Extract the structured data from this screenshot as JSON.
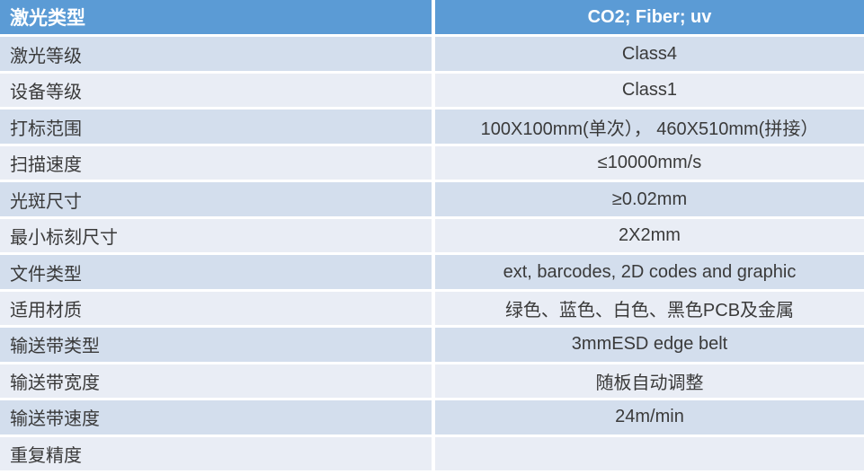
{
  "table": {
    "header": {
      "label": "激光类型",
      "value": "CO2; Fiber; uv"
    },
    "rows": [
      {
        "label": "激光等级",
        "value": "Class4"
      },
      {
        "label": "设备等级",
        "value": "Class1"
      },
      {
        "label": "打标范围",
        "value": "100X100mm(单次）， 460X510mm(拼接）"
      },
      {
        "label": "扫描速度",
        "value": "≤10000mm/s"
      },
      {
        "label": "光斑尺寸",
        "value": "≥0.02mm"
      },
      {
        "label": "最小标刻尺寸",
        "value": "2X2mm"
      },
      {
        "label": "文件类型",
        "value": "ext, barcodes, 2D codes and graphic"
      },
      {
        "label": "适用材质",
        "value": "绿色、蓝色、白色、黑色PCB及金属"
      },
      {
        "label": "输送带类型",
        "value": "3mmESD edge belt"
      },
      {
        "label": "输送带宽度",
        "value": "随板自动调整"
      },
      {
        "label": "输送带速度",
        "value": "24m/min"
      },
      {
        "label": "重复精度",
        "value": ""
      }
    ],
    "colors": {
      "header_bg": "#5B9BD5",
      "header_text": "#FFFFFF",
      "row_dark": "#D3DEED",
      "row_light": "#E9EDF5",
      "gap": "#FFFFFF",
      "text": "#3A3A3A"
    }
  }
}
